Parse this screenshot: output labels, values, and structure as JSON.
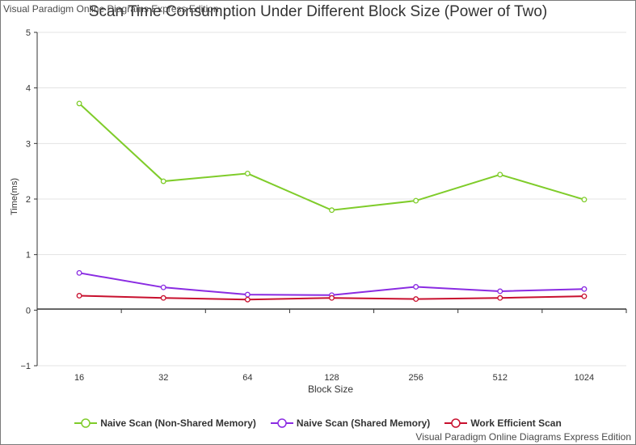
{
  "watermark": {
    "top": "Visual Paradigm Online Diagrams Express Edition",
    "bottom": "Visual Paradigm Online Diagrams Express Edition"
  },
  "chart_data": {
    "type": "line",
    "title": "Scan Time Consumption Under Different Block Size (Power of Two)",
    "xlabel": "Block Size",
    "ylabel": "Time(ms)",
    "categories": [
      "16",
      "32",
      "64",
      "128",
      "256",
      "512",
      "1024"
    ],
    "ylim": [
      -1,
      5
    ],
    "yticks": [
      -1,
      0,
      1,
      2,
      3,
      4,
      5
    ],
    "grid": true,
    "legend": "bottom",
    "series": [
      {
        "name": "Naive Scan (Non-Shared Memory)",
        "color": "#7fcc2a",
        "values": [
          3.72,
          2.32,
          2.46,
          1.8,
          1.97,
          2.44,
          1.99
        ]
      },
      {
        "name": "Naive Scan (Shared Memory)",
        "color": "#8a2be2",
        "values": [
          0.67,
          0.41,
          0.28,
          0.27,
          0.42,
          0.34,
          0.38
        ]
      },
      {
        "name": "Work Efficient Scan",
        "color": "#c8102e",
        "values": [
          0.26,
          0.22,
          0.19,
          0.22,
          0.2,
          0.22,
          0.25
        ]
      }
    ]
  }
}
